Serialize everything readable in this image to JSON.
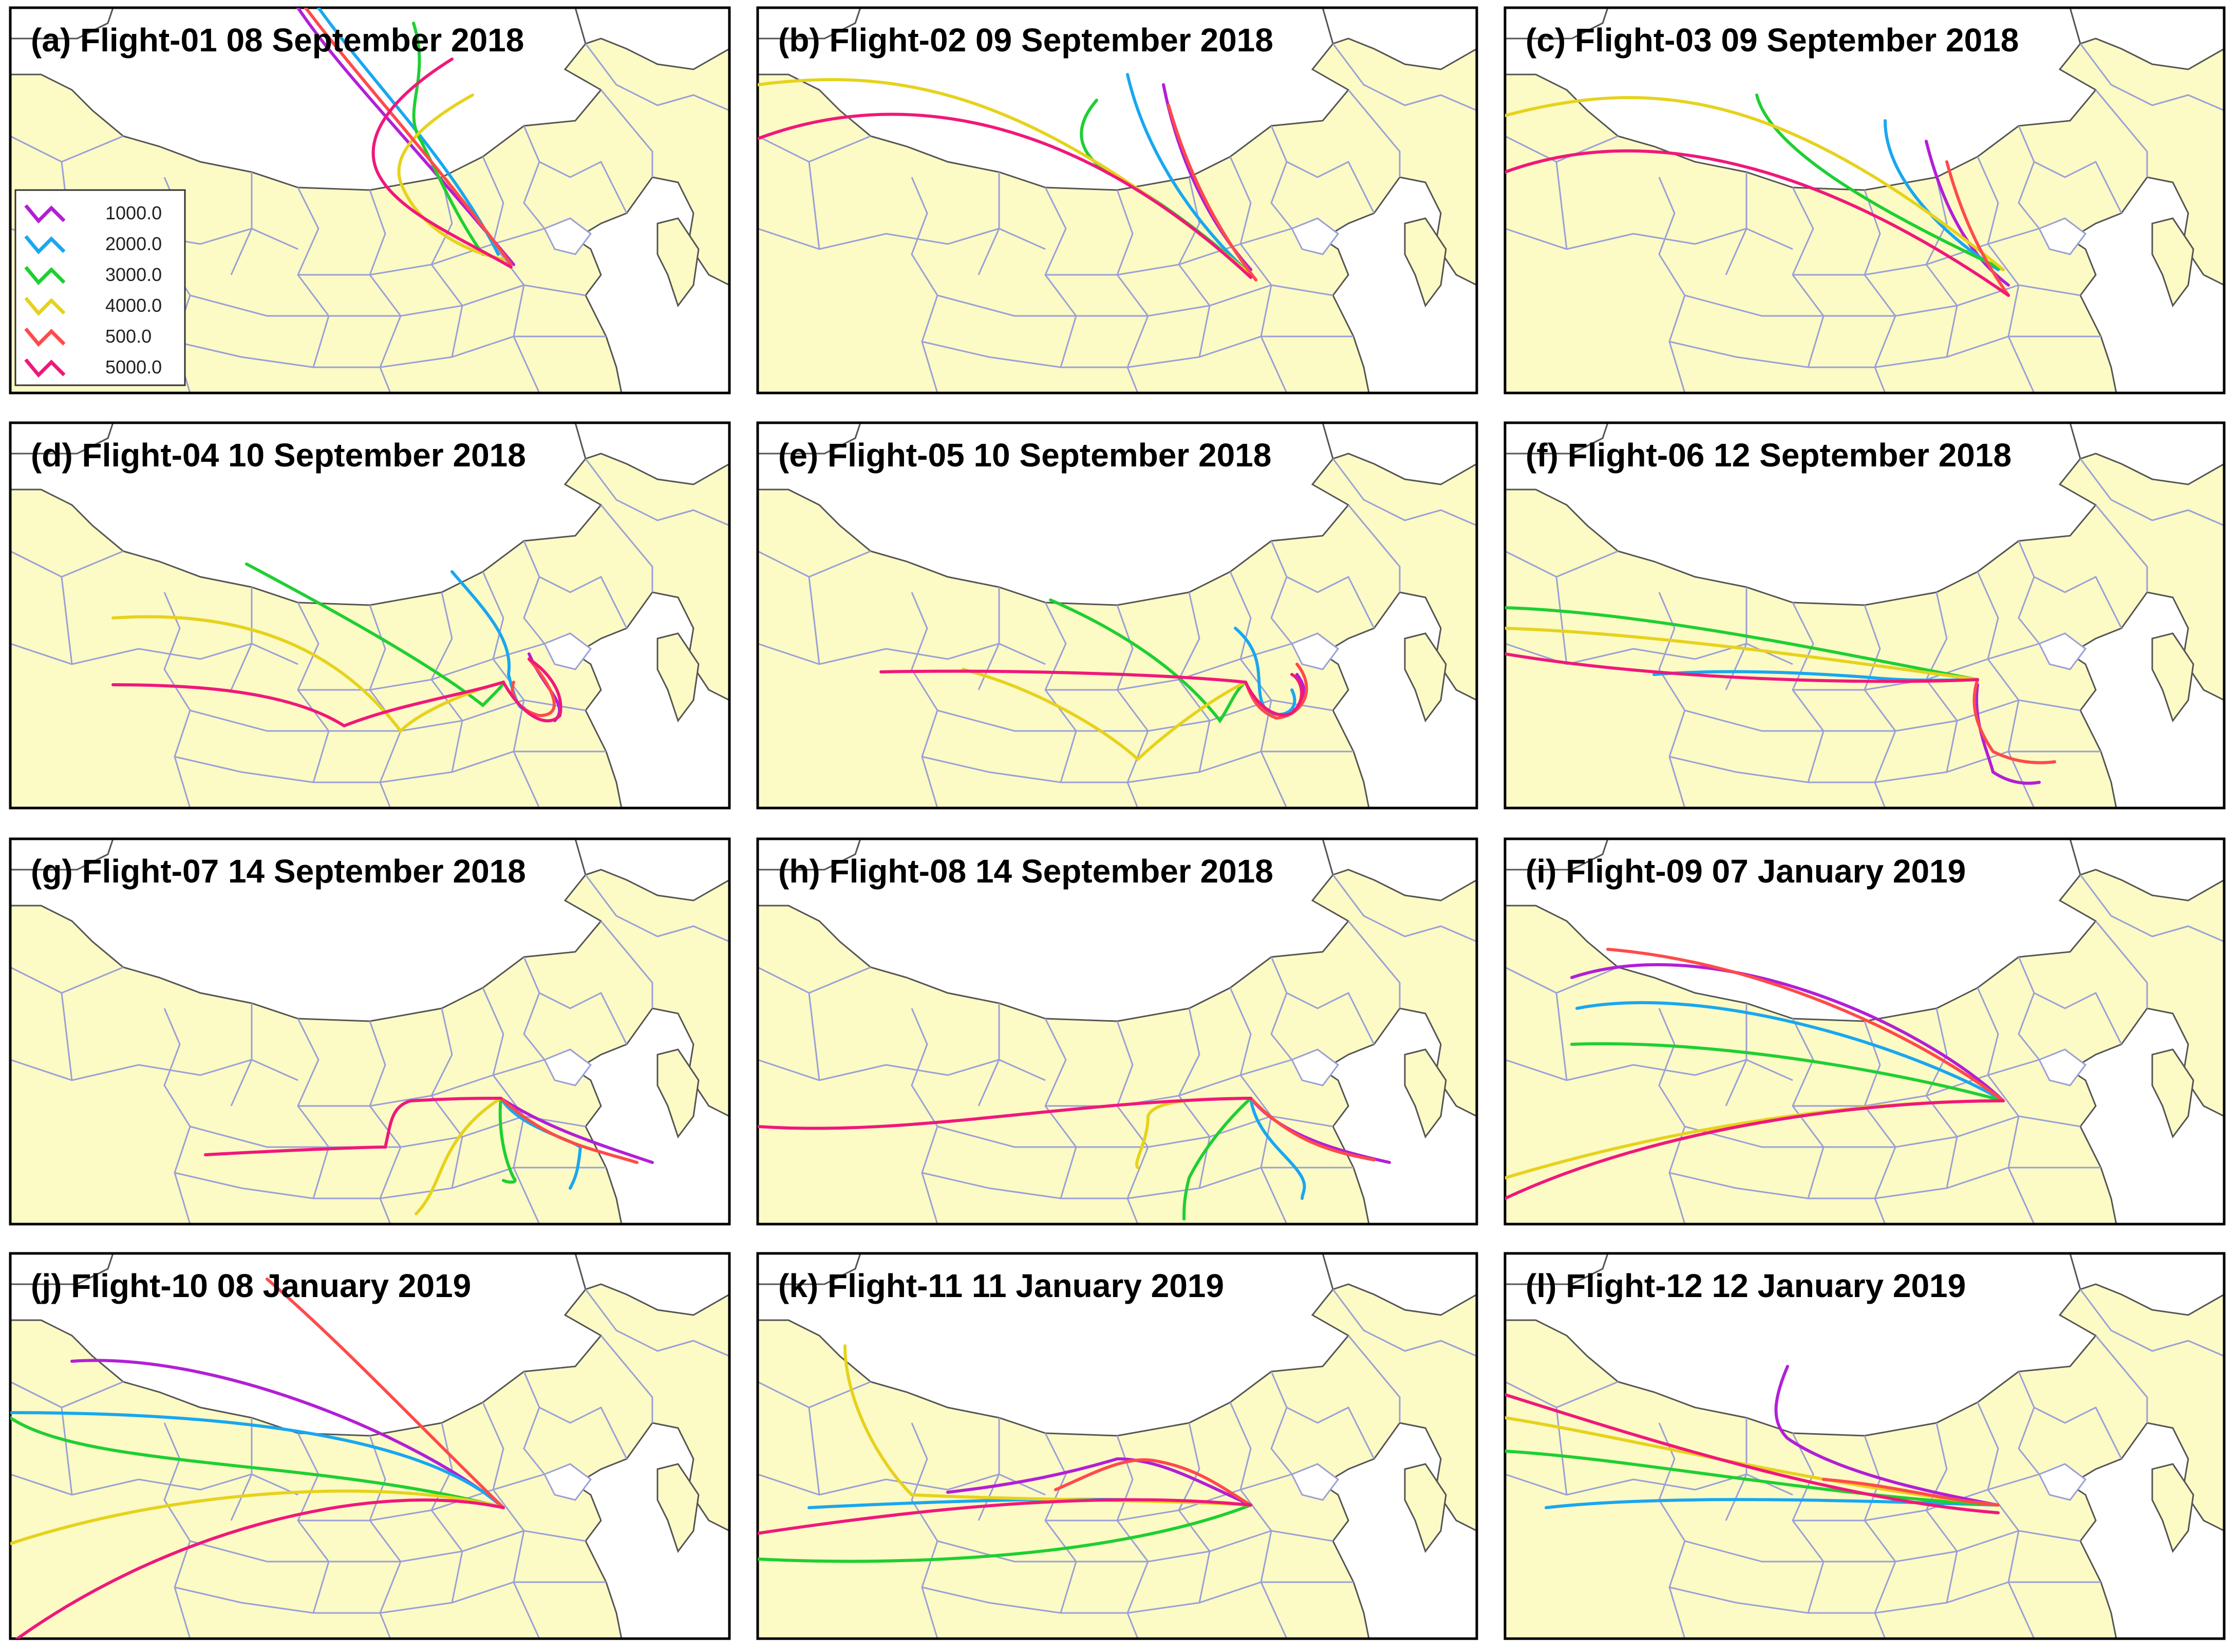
{
  "figure": {
    "description_hidden": false
  },
  "legend": {
    "title": "",
    "entries": [
      {
        "label": "1000.0",
        "color": "#B21FD6"
      },
      {
        "label": "2000.0",
        "color": "#19A7F0"
      },
      {
        "label": "3000.0",
        "color": "#1ECF32"
      },
      {
        "label": "4000.0",
        "color": "#E6D21C"
      },
      {
        "label": "500.0",
        "color": "#FF4A4A"
      },
      {
        "label": "5000.0",
        "color": "#F0187A"
      }
    ]
  },
  "map_colors": {
    "land": "#FCFAC5",
    "outside": "#FFFFFF",
    "province_border": "#9AA0D6",
    "country_border": "#555555",
    "frame": "#000000"
  },
  "panels": [
    {
      "id": "a",
      "title": "(a) Flight-01 08 September 2018"
    },
    {
      "id": "b",
      "title": "(b) Flight-02 09 September 2018"
    },
    {
      "id": "c",
      "title": "(c) Flight-03 09 September 2018"
    },
    {
      "id": "d",
      "title": "(d) Flight-04 10 September 2018"
    },
    {
      "id": "e",
      "title": "(e) Flight-05 10 September 2018"
    },
    {
      "id": "f",
      "title": "(f) Flight-06 12 September 2018"
    },
    {
      "id": "g",
      "title": "(g) Flight-07 14 September 2018"
    },
    {
      "id": "h",
      "title": "(h) Flight-08 14 September 2018"
    },
    {
      "id": "i",
      "title": "(i) Flight-09 07 January 2019"
    },
    {
      "id": "j",
      "title": "(j) Flight-10 08 January 2019"
    },
    {
      "id": "k",
      "title": "(k) Flight-11 11 January 2019"
    },
    {
      "id": "l",
      "title": "(l) Flight-12 12 January 2019"
    }
  ]
}
